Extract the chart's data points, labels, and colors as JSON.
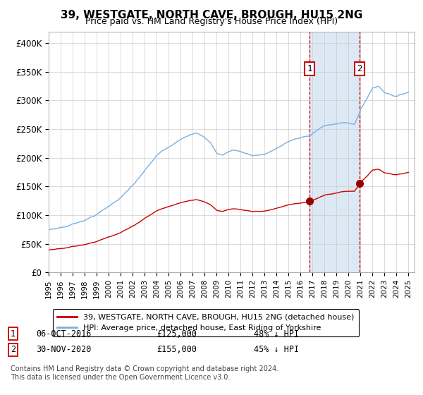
{
  "title": "39, WESTGATE, NORTH CAVE, BROUGH, HU15 2NG",
  "subtitle": "Price paid vs. HM Land Registry's House Price Index (HPI)",
  "legend_line1": "39, WESTGATE, NORTH CAVE, BROUGH, HU15 2NG (detached house)",
  "legend_line2": "HPI: Average price, detached house, East Riding of Yorkshire",
  "footer": "Contains HM Land Registry data © Crown copyright and database right 2024.\nThis data is licensed under the Open Government Licence v3.0.",
  "sale1_date": "06-OCT-2016",
  "sale1_price": 125000,
  "sale1_label": "48% ↓ HPI",
  "sale1_year": 2016.75,
  "sale2_date": "30-NOV-2020",
  "sale2_price": 155000,
  "sale2_label": "45% ↓ HPI",
  "sale2_year": 2020.92,
  "hpi_color": "#7aafe0",
  "price_color": "#cc0000",
  "marker_color": "#990000",
  "shaded_color": "#dce9f5",
  "grid_color": "#cccccc",
  "background_color": "#ffffff",
  "ylim": [
    0,
    420000
  ],
  "xlim": [
    1995.0,
    2025.5
  ],
  "yticks": [
    0,
    50000,
    100000,
    150000,
    200000,
    250000,
    300000,
    350000,
    400000
  ],
  "ytick_labels": [
    "£0",
    "£50K",
    "£100K",
    "£150K",
    "£200K",
    "£250K",
    "£300K",
    "£350K",
    "£400K"
  ],
  "xticks": [
    1995,
    1996,
    1997,
    1998,
    1999,
    2000,
    2001,
    2002,
    2003,
    2004,
    2005,
    2006,
    2007,
    2008,
    2009,
    2010,
    2011,
    2012,
    2013,
    2014,
    2015,
    2016,
    2017,
    2018,
    2019,
    2020,
    2021,
    2022,
    2023,
    2024,
    2025
  ]
}
